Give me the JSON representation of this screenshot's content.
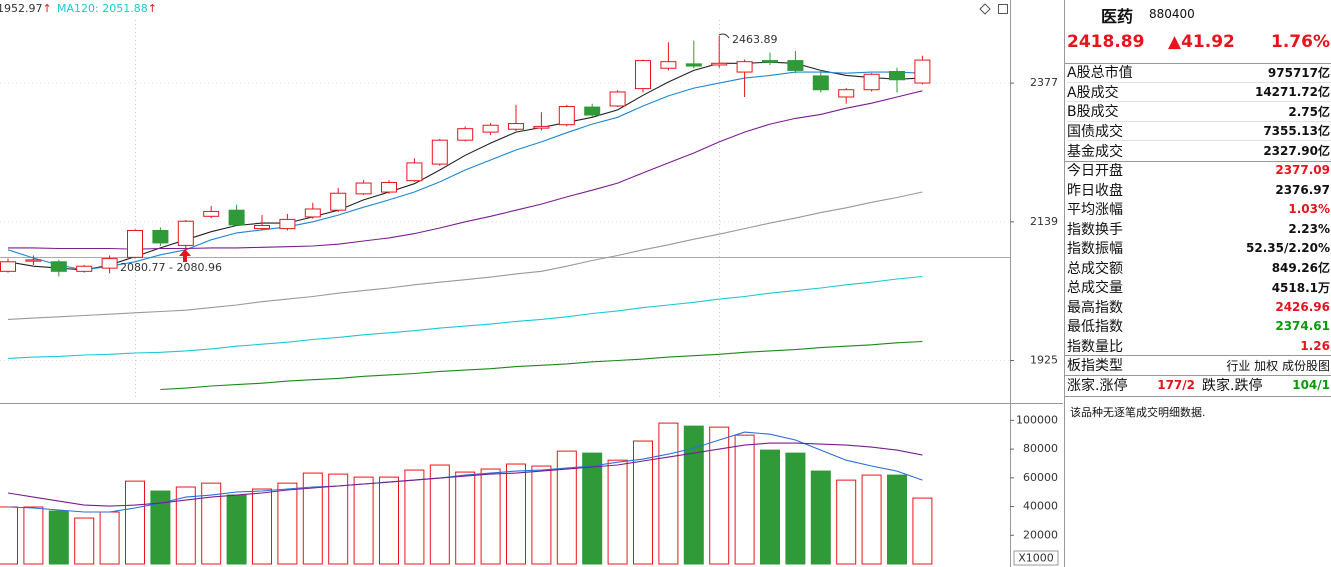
{
  "chart_data": [
    {
      "type": "candlestick",
      "log_scale": true,
      "ylim": [
        1868,
        2532
      ],
      "yticks": [
        1925,
        2139,
        2377
      ],
      "grid": true,
      "header": [
        {
          "text": "1952.97",
          "arrow": "↑",
          "color": "#333333"
        },
        {
          "text": "MA120: 2051.88",
          "arrow": "↑",
          "color": "#1ec8d8"
        }
      ],
      "categories": [
        null,
        null,
        null,
        null,
        null,
        null,
        null,
        null,
        null,
        null,
        null,
        null,
        null,
        null,
        null,
        null,
        null,
        null,
        null,
        null,
        null,
        null,
        null,
        null,
        null,
        null,
        null,
        null,
        null,
        null,
        null,
        null,
        null,
        null,
        null,
        null,
        null
      ],
      "open": [
        2060,
        2076,
        2075,
        2060,
        2065,
        2082,
        2125,
        2101,
        2148,
        2158,
        2128,
        2128,
        2147,
        2158,
        2185,
        2188,
        2207,
        2235,
        2276,
        2290,
        2295,
        2297,
        2303,
        2334,
        2336,
        2367,
        2404,
        2412,
        2410,
        2397,
        2418,
        2418,
        2390,
        2352,
        2365,
        2398,
        2377.09
      ],
      "high": [
        2080,
        2085,
        2078,
        2070,
        2085,
        2127,
        2130,
        2142,
        2165,
        2167,
        2150,
        2152,
        2170,
        2195,
        2208,
        2208,
        2245,
        2278,
        2300,
        2306,
        2338,
        2325,
        2338,
        2340,
        2364,
        2420,
        2452,
        2455,
        2463.89,
        2420,
        2433,
        2436,
        2400,
        2368,
        2395,
        2405,
        2426.96
      ],
      "low": [
        2058,
        2070,
        2052,
        2058,
        2057,
        2080,
        2100,
        2082,
        2145,
        2132,
        2125,
        2125,
        2144,
        2155,
        2183,
        2185,
        2205,
        2232,
        2274,
        2285,
        2292,
        2293,
        2300,
        2317,
        2334,
        2360,
        2400,
        2404,
        2405,
        2352,
        2410,
        2395,
        2360,
        2340,
        2362,
        2360,
        2374.61
      ],
      "close": [
        2075,
        2078,
        2060,
        2068,
        2080,
        2125,
        2105,
        2140,
        2156,
        2134,
        2133,
        2143,
        2160,
        2186,
        2203,
        2204,
        2237,
        2276,
        2296,
        2302,
        2305,
        2300,
        2335,
        2320,
        2361,
        2418,
        2416,
        2408,
        2413,
        2416,
        2415,
        2400,
        2365,
        2365,
        2393,
        2383,
        2418.89
      ],
      "up_color": "#e8141c",
      "down_color": "#2f9a37",
      "series": [
        {
          "color": "#222222",
          "values": [
            2075,
            2068,
            2065,
            2062,
            2070,
            2083,
            2097,
            2110,
            2123,
            2133,
            2137,
            2137,
            2147,
            2158,
            2175,
            2188,
            2202,
            2225,
            2250,
            2271,
            2290,
            2298,
            2307,
            2316,
            2329,
            2355,
            2379,
            2400,
            2413,
            2413,
            2415,
            2413,
            2400,
            2391,
            2387,
            2384,
            2386
          ]
        },
        {
          "color": "#1e88d0",
          "values": [
            2094,
            2081,
            2070,
            2062,
            2068,
            2075,
            2086,
            2094,
            2110,
            2121,
            2126,
            2131,
            2139,
            2150,
            2163,
            2175,
            2188,
            2205,
            2225,
            2242,
            2259,
            2273,
            2289,
            2304,
            2316,
            2336,
            2354,
            2368,
            2377,
            2386,
            2391,
            2397,
            2397,
            2395,
            2397,
            2397,
            2395
          ]
        },
        {
          "color": "#7b1e8f",
          "values": [
            2097,
            2097,
            2096,
            2096,
            2096,
            2095,
            2096,
            2096,
            2097,
            2097,
            2098,
            2099,
            2100,
            2103,
            2108,
            2113,
            2120,
            2129,
            2139,
            2148,
            2158,
            2168,
            2180,
            2191,
            2203,
            2220,
            2237,
            2254,
            2273,
            2290,
            2304,
            2314,
            2321,
            2332,
            2341,
            2352,
            2363
          ]
        },
        {
          "color": "#999999",
          "values": [
            1986,
            1988,
            1990,
            1992,
            1994,
            1996,
            1998,
            2000,
            2004,
            2008,
            2013,
            2017,
            2021,
            2026,
            2030,
            2034,
            2039,
            2043,
            2047,
            2051,
            2056,
            2060,
            2068,
            2077,
            2085,
            2094,
            2102,
            2111,
            2119,
            2128,
            2137,
            2145,
            2154,
            2162,
            2171,
            2179,
            2188
          ]
        },
        {
          "color": "#1ec8d8",
          "values": [
            1928,
            1930,
            1931,
            1933,
            1934,
            1936,
            1937,
            1939,
            1942,
            1946,
            1949,
            1952,
            1956,
            1959,
            1963,
            1966,
            1969,
            1973,
            1976,
            1979,
            1983,
            1986,
            1990,
            1995,
            1999,
            2004,
            2008,
            2012,
            2017,
            2021,
            2026,
            2030,
            2034,
            2039,
            2043,
            2048,
            2051.88
          ]
        },
        {
          "color": "#1a8a1a",
          "values": [
            null,
            null,
            null,
            null,
            null,
            null,
            1883,
            1885,
            1888,
            1890,
            1892,
            1895,
            1897,
            1899,
            1902,
            1904,
            1906,
            1909,
            1911,
            1913,
            1916,
            1918,
            1920,
            1923,
            1925,
            1927,
            1930,
            1932,
            1934,
            1937,
            1939,
            1941,
            1944,
            1946,
            1948,
            1951,
            1952.97
          ]
        }
      ],
      "annotations": [
        {
          "text": "2463.89"
        },
        {
          "text": "2080.77 - 2080.96"
        }
      ]
    },
    {
      "type": "volume",
      "ylim": [
        0,
        110000
      ],
      "yticks": [
        20000,
        40000,
        60000,
        80000,
        100000
      ],
      "unit_label": "X1000",
      "values": [
        39700,
        39700,
        36900,
        32000,
        36200,
        57700,
        50800,
        53600,
        56300,
        48000,
        52200,
        56300,
        63300,
        62600,
        60500,
        60500,
        65400,
        68900,
        64000,
        66100,
        69600,
        68200,
        78600,
        77200,
        72300,
        85600,
        98100,
        96000,
        95300,
        89700,
        79300,
        77200,
        64700,
        58400,
        61900,
        61900,
        45900
      ],
      "series": [
        {
          "color": "#2a6fd8",
          "values": [
            39700,
            39000,
            37600,
            36200,
            36200,
            39000,
            42400,
            46600,
            48000,
            50100,
            50800,
            52200,
            53600,
            54300,
            55700,
            57000,
            58400,
            59800,
            61900,
            63300,
            64700,
            65400,
            66800,
            68200,
            70900,
            73000,
            76500,
            80700,
            86300,
            91800,
            90400,
            86300,
            79300,
            72300,
            68200,
            64700,
            58400
          ]
        },
        {
          "color": "#7b1e8f",
          "values": [
            49400,
            46600,
            43800,
            41000,
            40300,
            41000,
            42400,
            44500,
            46600,
            48000,
            49400,
            51500,
            52900,
            54300,
            55700,
            57000,
            58400,
            59800,
            61200,
            62600,
            63300,
            64700,
            66100,
            67500,
            68900,
            71700,
            74400,
            77200,
            80000,
            82800,
            84200,
            84200,
            83500,
            82800,
            81400,
            79300,
            75800
          ]
        }
      ]
    }
  ],
  "quote_panel": {
    "name": "医药",
    "code": "880400",
    "price": "2418.89",
    "change": "▲41.92",
    "change_pct": "1.76%",
    "price_color": "#e8141c",
    "rows": [
      {
        "label": "A股总市值",
        "value": "975717亿",
        "color": "#111111"
      },
      {
        "label": "A股成交",
        "value": "14271.72亿",
        "color": "#111111"
      },
      {
        "label": "B股成交",
        "value": "2.75亿",
        "color": "#111111"
      },
      {
        "label": "国债成交",
        "value": "7355.13亿",
        "color": "#111111"
      },
      {
        "label": "基金成交",
        "value": "2327.90亿",
        "color": "#111111"
      },
      {
        "label": "今日开盘",
        "value": "2377.09",
        "color": "#e8141c"
      },
      {
        "label": "昨日收盘",
        "value": "2376.97",
        "color": "#111111"
      },
      {
        "label": "平均涨幅",
        "value": "1.03%",
        "color": "#e8141c"
      },
      {
        "label": "指数换手",
        "value": "2.23%",
        "color": "#111111"
      },
      {
        "label": "指数振幅",
        "value": "52.35/2.20%",
        "color": "#111111"
      },
      {
        "label": "总成交额",
        "value": "849.26亿",
        "color": "#111111"
      },
      {
        "label": "总成交量",
        "value": "4518.1万",
        "color": "#111111"
      },
      {
        "label": "最高指数",
        "value": "2426.96",
        "color": "#e8141c"
      },
      {
        "label": "最低指数",
        "value": "2374.61",
        "color": "#0a9b0a"
      },
      {
        "label": "指数量比",
        "value": "1.26",
        "color": "#e8141c"
      },
      {
        "label": "板指类型",
        "value": "行业 加权 成份股图",
        "color": "#111111"
      }
    ],
    "breadth": {
      "up_label": "涨家.涨停",
      "up_value": "177/2",
      "up_color": "#e8141c",
      "down_label": "跌家.跌停",
      "down_value": "104/1",
      "down_color": "#0a9b0a"
    },
    "note": "该品种无逐笔成交明细数据."
  }
}
